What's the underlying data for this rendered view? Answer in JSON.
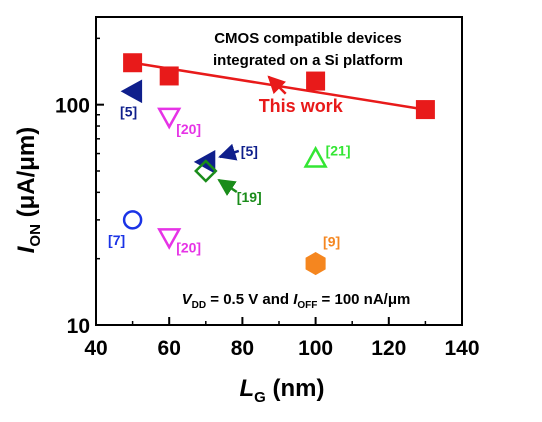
{
  "chart_data": {
    "type": "scatter",
    "title": "",
    "xlabel": {
      "main": "L",
      "sub": "G",
      "unit": " (nm)"
    },
    "ylabel": {
      "main": "I",
      "sub": "ON",
      "unit": " (μA/μm)"
    },
    "xlim": [
      40,
      140
    ],
    "ylim": [
      10,
      250
    ],
    "yscale": "log",
    "x_ticks": [
      40,
      60,
      80,
      100,
      120,
      140
    ],
    "y_ticks": [
      10,
      100
    ],
    "grid": false,
    "legend": "none",
    "header_note": [
      "CMOS compatible devices",
      "integrated on a Si platform"
    ],
    "bottom_note": {
      "vdd": "V",
      "vdd_sub": "DD",
      "vdd_val": " = 0.5 V and ",
      "ioff": "I",
      "ioff_sub": "OFF",
      "ioff_val": " = 100 nA/μm"
    },
    "series": [
      {
        "name": "This work",
        "marker": "square",
        "color": "#e81a1a",
        "filled": true,
        "trend_line": true,
        "points": [
          {
            "x": 50,
            "y": 155
          },
          {
            "x": 60,
            "y": 135
          },
          {
            "x": 100,
            "y": 128
          },
          {
            "x": 130,
            "y": 95
          }
        ]
      },
      {
        "name": "[5]",
        "marker": "triangle-left",
        "color": "#0f1f8c",
        "filled": true,
        "points": [
          {
            "x": 50,
            "y": 115
          },
          {
            "x": 70,
            "y": 55
          }
        ]
      },
      {
        "name": "[20]",
        "marker": "triangle-down",
        "color": "#e633e6",
        "filled": false,
        "points": [
          {
            "x": 60,
            "y": 88
          },
          {
            "x": 60,
            "y": 25
          }
        ]
      },
      {
        "name": "[19]",
        "marker": "diamond",
        "color": "#1a8c1a",
        "filled": false,
        "points": [
          {
            "x": 70,
            "y": 50
          }
        ]
      },
      {
        "name": "[21]",
        "marker": "triangle-up",
        "color": "#33e633",
        "filled": false,
        "points": [
          {
            "x": 100,
            "y": 57
          }
        ]
      },
      {
        "name": "[7]",
        "marker": "circle",
        "color": "#1a33e6",
        "filled": false,
        "points": [
          {
            "x": 50,
            "y": 30
          }
        ]
      },
      {
        "name": "[9]",
        "marker": "hexagon",
        "color": "#f5861f",
        "filled": true,
        "points": [
          {
            "x": 100,
            "y": 19
          }
        ]
      }
    ],
    "annotations": [
      {
        "text": "This work",
        "color": "#e81a1a",
        "series": 0
      },
      {
        "text": "[5]",
        "color": "#0f1f8c",
        "series": 1,
        "point": 0
      },
      {
        "text": "[5]",
        "color": "#0f1f8c",
        "series": 1,
        "point": 1
      },
      {
        "text": "[20]",
        "color": "#e633e6",
        "series": 2,
        "point": 0
      },
      {
        "text": "[20]",
        "color": "#e633e6",
        "series": 2,
        "point": 1
      },
      {
        "text": "[19]",
        "color": "#1a8c1a",
        "series": 3,
        "point": 0
      },
      {
        "text": "[21]",
        "color": "#33e633",
        "series": 4,
        "point": 0
      },
      {
        "text": "[7]",
        "color": "#1a33e6",
        "series": 5,
        "point": 0
      },
      {
        "text": "[9]",
        "color": "#f5861f",
        "series": 6,
        "point": 0
      }
    ]
  }
}
